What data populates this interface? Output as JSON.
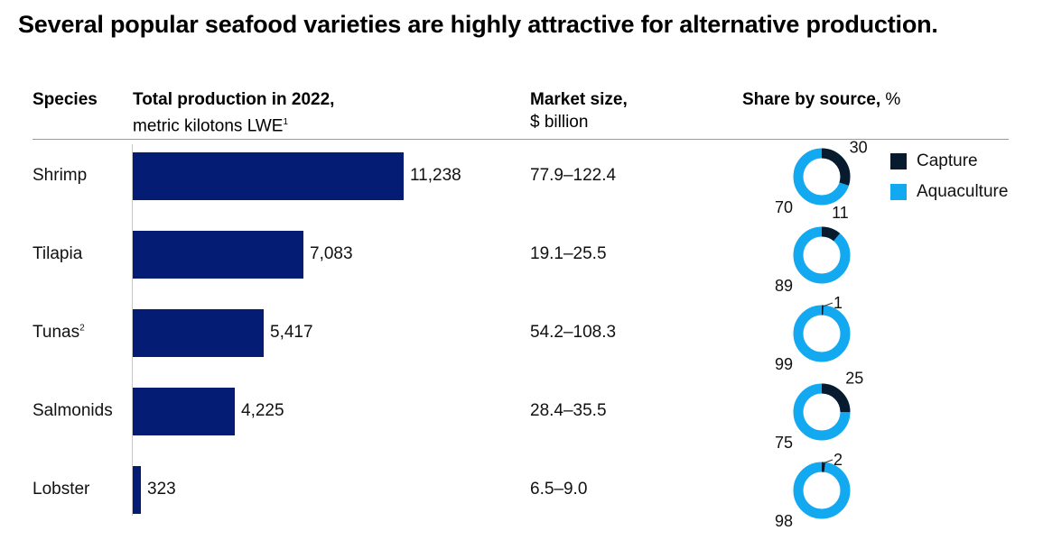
{
  "title": "Several popular seafood varieties are highly attractive for alternative production.",
  "headers": {
    "species": "Species",
    "production_bold": "Total production in 2022,",
    "production_sub": "metric kilotons LWE",
    "production_sup": "1",
    "market_bold": "Market size,",
    "market_sub": "$ billion",
    "share_bold": "Share by source,",
    "share_unit": " %"
  },
  "colors": {
    "bar": "#051c74",
    "capture": "#071a2e",
    "aquaculture": "#13a9f0"
  },
  "legend": {
    "capture": "Capture",
    "aquaculture": "Aquaculture"
  },
  "rows": [
    {
      "species": "Shrimp",
      "sup": "",
      "production_label": "11,238",
      "market": "77.9–122.4",
      "capture_label": "30",
      "aquaculture_label": "70"
    },
    {
      "species": "Tilapia",
      "sup": "",
      "production_label": "7,083",
      "market": "19.1–25.5",
      "capture_label": "11",
      "aquaculture_label": "89"
    },
    {
      "species": "Tunas",
      "sup": "2",
      "production_label": "5,417",
      "market": "54.2–108.3",
      "capture_label": "1",
      "aquaculture_label": "99"
    },
    {
      "species": "Salmonids",
      "sup": "",
      "production_label": "4,225",
      "market": "28.4–35.5",
      "capture_label": "25",
      "aquaculture_label": "75"
    },
    {
      "species": "Lobster",
      "sup": "",
      "production_label": "323",
      "market": "6.5–9.0",
      "capture_label": "2",
      "aquaculture_label": "98"
    }
  ],
  "chart_data": [
    {
      "type": "bar",
      "orientation": "horizontal",
      "categories": [
        "Shrimp",
        "Tilapia",
        "Tunas",
        "Salmonids",
        "Lobster"
      ],
      "values": [
        11238,
        7083,
        5417,
        4225,
        323
      ],
      "title": "Total production in 2022,",
      "xlabel": "metric kilotons LWE",
      "grid": false
    },
    {
      "type": "table",
      "columns": [
        "Species",
        "Market size, $ billion"
      ],
      "rows": [
        [
          "Shrimp",
          "77.9–122.4"
        ],
        [
          "Tilapia",
          "19.1–25.5"
        ],
        [
          "Tunas",
          "54.2–108.3"
        ],
        [
          "Salmonids",
          "28.4–35.5"
        ],
        [
          "Lobster",
          "6.5–9.0"
        ]
      ]
    },
    {
      "type": "pie",
      "variant": "donut",
      "title": "Share by source, %",
      "legend": [
        "Capture",
        "Aquaculture"
      ],
      "legend_position": "right",
      "categories": [
        "Shrimp",
        "Tilapia",
        "Tunas",
        "Salmonids",
        "Lobster"
      ],
      "series": [
        {
          "name": "Capture",
          "values": [
            30,
            11,
            1,
            25,
            2
          ]
        },
        {
          "name": "Aquaculture",
          "values": [
            70,
            89,
            99,
            75,
            98
          ]
        }
      ]
    }
  ]
}
